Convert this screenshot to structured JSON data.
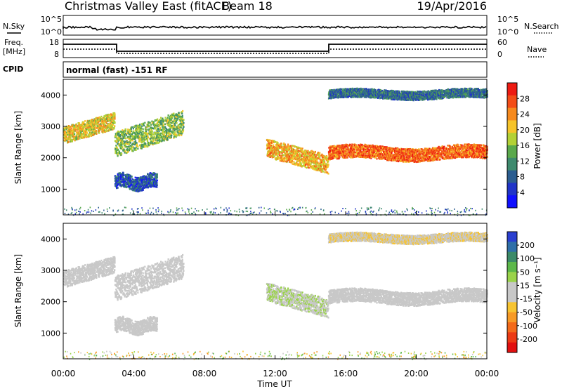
{
  "header": {
    "title": "Christmas Valley East (fitACF)",
    "beam": "Beam 18",
    "date": "19/Apr/2016"
  },
  "status_panels": {
    "nsky_label": "N.Sky",
    "nsearch_label": "N.Search",
    "noise_ticks": [
      "10^5",
      "10^0"
    ],
    "noise_ticks_right": [
      "10^5",
      "10^0"
    ],
    "freq_label_1": "Freq.",
    "freq_label_2": "[MHz]",
    "freq_ticks": [
      "18",
      "8"
    ],
    "nave_label": "Nave",
    "nave_ticks": [
      "60",
      "0"
    ],
    "cpid_label": "CPID",
    "cpid_text": "normal (fast) -151 RF"
  },
  "axes": {
    "ylabel": "Slant Range [km]",
    "xlabel": "Time UT",
    "ytick_labels": [
      "1000",
      "2000",
      "3000",
      "4000"
    ],
    "xtick_labels": [
      "00:00",
      "04:00",
      "08:00",
      "12:00",
      "16:00",
      "20:00",
      "00:00"
    ]
  },
  "power_colorbar": {
    "label": "Power [dB]",
    "ticks": [
      "28",
      "24",
      "20",
      "16",
      "12",
      "8",
      "4"
    ],
    "colors": [
      "#ee1b12",
      "#f34d17",
      "#f68a1e",
      "#f6c42a",
      "#b3d136",
      "#5aa94c",
      "#3e8a6e",
      "#2b5d90",
      "#2034c8",
      "#1010ff"
    ]
  },
  "velocity_colorbar": {
    "label": "Velocity [m s⁻¹]",
    "ticks": [
      "200",
      "100",
      "50",
      "15",
      "-15",
      "-50",
      "-100",
      "-200"
    ],
    "colors": [
      "#2a3fd0",
      "#2f6fa8",
      "#3b8a68",
      "#5cb84a",
      "#9ad34a",
      "#c8c8c8",
      "#c8c8c8",
      "#f7c431",
      "#f79a26",
      "#f36a1a",
      "#ec3a14",
      "#e21010"
    ]
  },
  "chart_data": [
    {
      "type": "heatmap",
      "name": "power",
      "x_range_hours": [
        0,
        24
      ],
      "y_range_km": [
        180,
        4500
      ],
      "colorbar_range_db": [
        0,
        30
      ],
      "echo_regions": [
        {
          "t_start": 0.0,
          "t_end": 2.9,
          "r_start": 2500,
          "r_end": 3450,
          "power_db": 20
        },
        {
          "t_start": 2.9,
          "t_end": 6.8,
          "r_start": 2100,
          "r_end": 3500,
          "power_db": 16
        },
        {
          "t_start": 2.9,
          "t_end": 5.3,
          "r_start": 850,
          "r_end": 1650,
          "power_db": 8
        },
        {
          "t_start": 11.5,
          "t_end": 15.0,
          "r_start": 1550,
          "r_end": 2600,
          "power_db": 22
        },
        {
          "t_start": 15.0,
          "t_end": 24.0,
          "r_start": 1800,
          "r_end": 2550,
          "power_db": 26
        },
        {
          "t_start": 15.0,
          "t_end": 24.0,
          "r_start": 3800,
          "r_end": 4300,
          "power_db": 10
        }
      ]
    },
    {
      "type": "heatmap",
      "name": "velocity",
      "x_range_hours": [
        0,
        24
      ],
      "y_range_km": [
        180,
        4500
      ],
      "colorbar_range_ms": [
        -250,
        250
      ],
      "echo_regions": [
        {
          "t_start": 0.0,
          "t_end": 2.9,
          "r_start": 2500,
          "r_end": 3450,
          "velocity_ms": 0
        },
        {
          "t_start": 2.9,
          "t_end": 6.8,
          "r_start": 2100,
          "r_end": 3500,
          "velocity_ms": 0
        },
        {
          "t_start": 2.9,
          "t_end": 5.3,
          "r_start": 850,
          "r_end": 1650,
          "velocity_ms": 0
        },
        {
          "t_start": 11.5,
          "t_end": 15.0,
          "r_start": 1550,
          "r_end": 2600,
          "velocity_ms": 40
        },
        {
          "t_start": 15.0,
          "t_end": 24.0,
          "r_start": 1800,
          "r_end": 2550,
          "velocity_ms": 0
        },
        {
          "t_start": 15.0,
          "t_end": 24.0,
          "r_start": 3800,
          "r_end": 4300,
          "velocity_ms": -40
        }
      ]
    }
  ]
}
